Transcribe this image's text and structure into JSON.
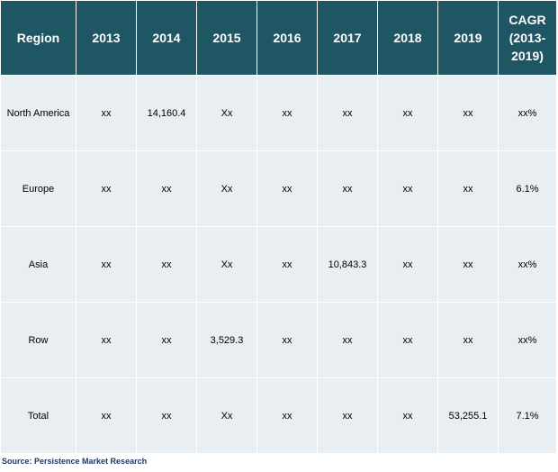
{
  "table": {
    "headers": [
      "Region",
      "2013",
      "2014",
      "2015",
      "2016",
      "2017",
      "2018",
      "2019",
      "CAGR (2013-2019)"
    ],
    "rows": [
      [
        "North America",
        "xx",
        "14,160.4",
        "Xx",
        "xx",
        "xx",
        "xx",
        "xx",
        "xx%"
      ],
      [
        "Europe",
        "xx",
        "xx",
        "Xx",
        "xx",
        "xx",
        "xx",
        "xx",
        "6.1%"
      ],
      [
        "Asia",
        "xx",
        "xx",
        "Xx",
        "xx",
        "10,843.3",
        "xx",
        "xx",
        "xx%"
      ],
      [
        "Row",
        "xx",
        "xx",
        "3,529.3",
        "xx",
        "xx",
        "xx",
        "xx",
        "xx%"
      ],
      [
        "Total",
        "xx",
        "xx",
        "Xx",
        "xx",
        "xx",
        "xx",
        "53,255.1",
        "7.1%"
      ]
    ]
  },
  "source": "Source: Persistence Market Research",
  "colors": {
    "header_bg": "#1e5663",
    "cell_bg": "#e8eef1",
    "source_text": "#1f3864"
  }
}
